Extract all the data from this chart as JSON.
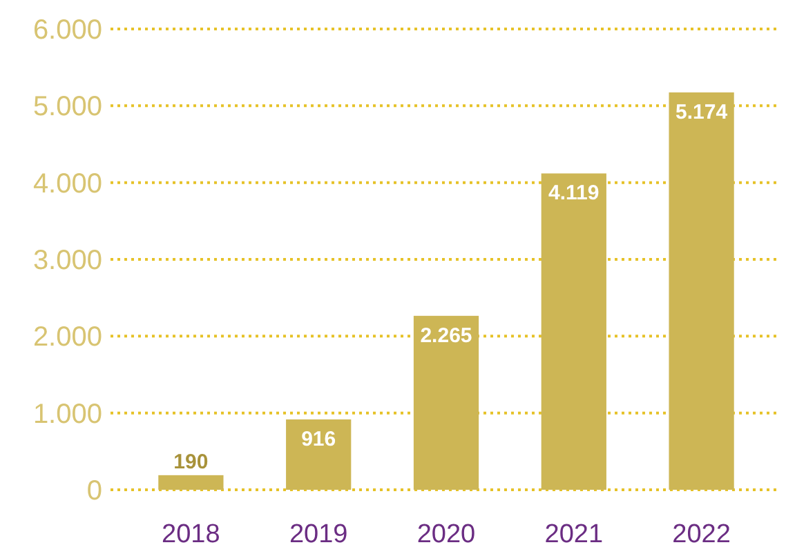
{
  "chart_data": {
    "type": "bar",
    "categories": [
      "2018",
      "2019",
      "2020",
      "2021",
      "2022"
    ],
    "values": [
      190,
      916,
      2265,
      4119,
      5174
    ],
    "value_labels": [
      "190",
      "916",
      "2.265",
      "4.119",
      "5.174"
    ],
    "color": "#cdb655",
    "ylim": [
      0,
      6000
    ],
    "yticks": [
      {
        "value": 0,
        "label": "0"
      },
      {
        "value": 1000,
        "label": "1.000"
      },
      {
        "value": 2000,
        "label": "2.000"
      },
      {
        "value": 3000,
        "label": "3.000"
      },
      {
        "value": 4000,
        "label": "4.000"
      },
      {
        "value": 5000,
        "label": "5.000"
      },
      {
        "value": 6000,
        "label": "6.000"
      }
    ],
    "grid": "y"
  }
}
